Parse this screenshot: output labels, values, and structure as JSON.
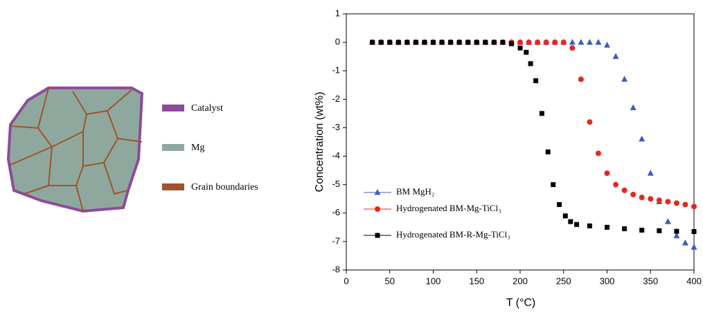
{
  "diagram": {
    "legend": [
      "Catalyst",
      "Mg",
      "Grain boundaries"
    ]
  },
  "chart_data": {
    "type": "line",
    "xlabel": "T (°C)",
    "ylabel": "Concentration (wt%)",
    "xlim": [
      0,
      400
    ],
    "xticks": [
      0,
      50,
      100,
      150,
      200,
      250,
      300,
      350,
      400
    ],
    "ylim": [
      -8,
      1
    ],
    "yticks": [
      1,
      0,
      -1,
      -2,
      -3,
      -4,
      -5,
      -6,
      -7,
      -8
    ],
    "series": [
      {
        "name": "BM MgH₂",
        "color": "#3b5cc4",
        "marker": "triangle",
        "x": [
          30,
          40,
          50,
          60,
          70,
          80,
          90,
          100,
          110,
          120,
          130,
          140,
          150,
          160,
          170,
          180,
          190,
          200,
          210,
          220,
          230,
          240,
          250,
          260,
          270,
          280,
          290,
          300,
          310,
          320,
          330,
          340,
          350,
          360,
          370,
          380,
          390,
          400
        ],
        "values": [
          0,
          0,
          0,
          0,
          0,
          0,
          0,
          0,
          0,
          0,
          0,
          0,
          0,
          0,
          0,
          0,
          0,
          0,
          0,
          0,
          0,
          0,
          0,
          0,
          0,
          0,
          0,
          -0.1,
          -0.5,
          -1.3,
          -2.3,
          -3.4,
          -4.6,
          -5.6,
          -6.3,
          -6.8,
          -7.05,
          -7.2
        ]
      },
      {
        "name": "Hydrogenated BM-Mg-TiCl₃",
        "color": "#e8261c",
        "marker": "circle",
        "x": [
          30,
          40,
          50,
          60,
          70,
          80,
          90,
          100,
          110,
          120,
          130,
          140,
          150,
          160,
          170,
          180,
          190,
          200,
          210,
          220,
          230,
          240,
          250,
          260,
          270,
          280,
          290,
          300,
          310,
          320,
          330,
          340,
          350,
          360,
          370,
          380,
          390,
          400
        ],
        "values": [
          0,
          0,
          0,
          0,
          0,
          0,
          0,
          0,
          0,
          0,
          0,
          0,
          0,
          0,
          0,
          0,
          0,
          0,
          0,
          0,
          0,
          0,
          0,
          -0.2,
          -1.3,
          -2.8,
          -3.9,
          -4.6,
          -5.0,
          -5.2,
          -5.35,
          -5.45,
          -5.5,
          -5.55,
          -5.6,
          -5.65,
          -5.7,
          -5.77
        ]
      },
      {
        "name": "Hydrogenated BM-R-Mg-TiCl₃",
        "color": "#000000",
        "marker": "square",
        "x": [
          30,
          40,
          50,
          60,
          70,
          80,
          90,
          100,
          110,
          120,
          130,
          140,
          150,
          160,
          170,
          180,
          190,
          200,
          207,
          212,
          218,
          225,
          232,
          238,
          245,
          252,
          258,
          265,
          280,
          300,
          320,
          340,
          360,
          380,
          400
        ],
        "values": [
          0,
          0,
          0,
          0,
          0,
          0,
          0,
          0,
          0,
          0,
          0,
          0,
          0,
          0,
          0,
          0,
          -0.05,
          -0.2,
          -0.35,
          -0.75,
          -1.35,
          -2.5,
          -3.85,
          -5.0,
          -5.7,
          -6.1,
          -6.3,
          -6.4,
          -6.45,
          -6.5,
          -6.55,
          -6.6,
          -6.62,
          -6.64,
          -6.65
        ]
      }
    ]
  }
}
